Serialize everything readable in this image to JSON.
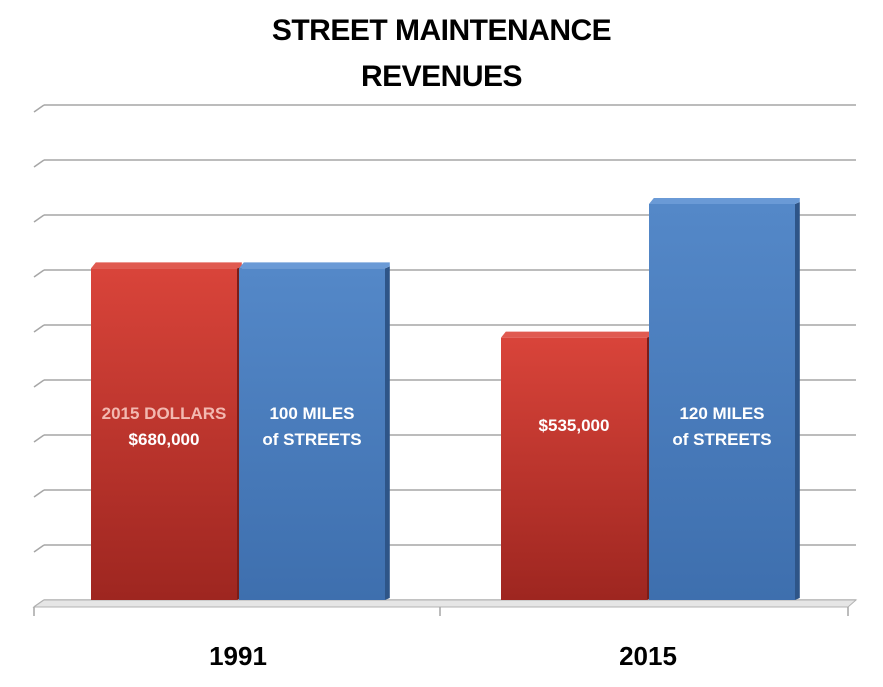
{
  "chart_data": {
    "type": "bar",
    "title_lines": [
      "STREET MAINTENANCE",
      "REVENUES"
    ],
    "categories": [
      "1991",
      "2015"
    ],
    "ylim": [
      0,
      100
    ],
    "grid": true,
    "bars": [
      {
        "category": "1991",
        "value": 67,
        "color": "#c0392b",
        "label_lines": [
          "2015 DOLLARS",
          "$680,000"
        ],
        "label_colors": [
          "#f2b8b0",
          "#ffffff"
        ]
      },
      {
        "category": "1991",
        "value": 67,
        "color": "#4a7bbd",
        "label_lines": [
          "100 MILES",
          "of STREETS"
        ],
        "label_colors": [
          "#ffffff",
          "#ffffff"
        ]
      },
      {
        "category": "2015",
        "value": 53,
        "color": "#c0392b",
        "label_lines": [
          "$535,000"
        ],
        "label_colors": [
          "#ffffff"
        ]
      },
      {
        "category": "2015",
        "value": 80,
        "color": "#4a7bbd",
        "label_lines": [
          "120 MILES",
          "of STREETS"
        ],
        "label_colors": [
          "#ffffff",
          "#ffffff"
        ]
      }
    ]
  }
}
